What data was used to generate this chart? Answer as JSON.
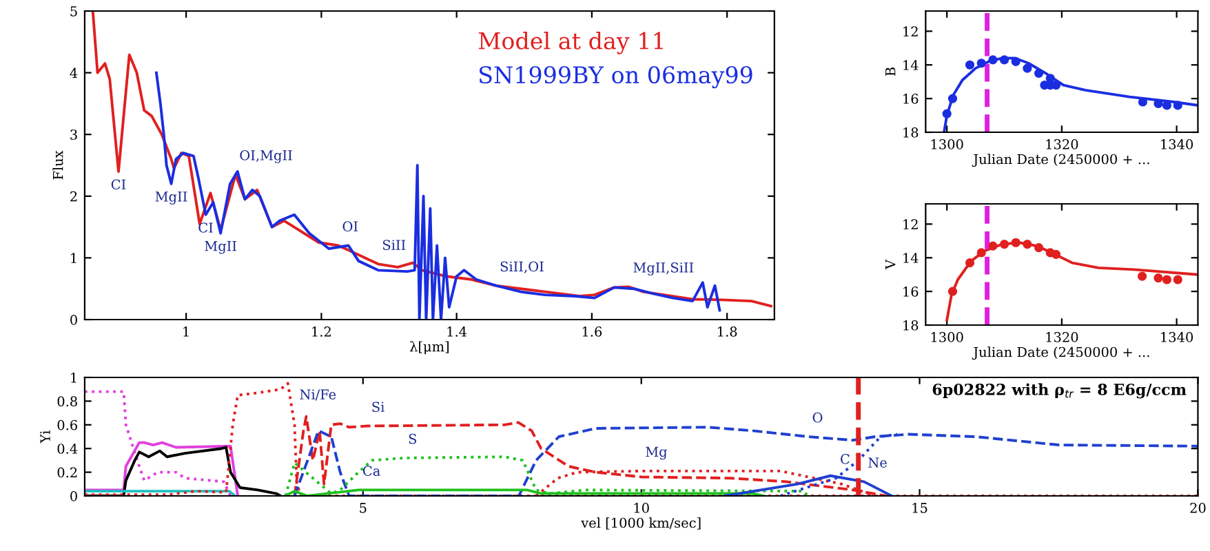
{
  "chart_data": [
    {
      "type": "line",
      "xlabel": "λ[μm]",
      "ylabel": "Flux",
      "xlim": [
        0.85,
        1.87
      ],
      "ylim": [
        0,
        5
      ],
      "xticks": [
        1,
        1.2,
        1.4,
        1.6,
        1.8
      ],
      "yticks": [
        0,
        1,
        2,
        3,
        4,
        5
      ],
      "legend": "top right",
      "series": [
        {
          "name": "Model at day 11",
          "color": "#e02020",
          "x": [
            0.862,
            0.869,
            0.88,
            0.887,
            0.9,
            0.916,
            0.927,
            0.938,
            0.949,
            0.964,
            0.978,
            0.982,
            0.993,
            1.004,
            1.02,
            1.036,
            1.051,
            1.073,
            1.087,
            1.105,
            1.127,
            1.145,
            1.167,
            1.196,
            1.225,
            1.255,
            1.284,
            1.313,
            1.335,
            1.349,
            1.385,
            1.422,
            1.458,
            1.531,
            1.582,
            1.604,
            1.633,
            1.655,
            1.676,
            1.749,
            1.793,
            1.836,
            1.865
          ],
          "values": [
            5.0,
            4.0,
            4.15,
            3.9,
            2.4,
            4.29,
            4.0,
            3.39,
            3.3,
            3.0,
            2.6,
            2.45,
            2.7,
            2.65,
            1.55,
            2.05,
            1.45,
            2.35,
            1.95,
            2.1,
            1.5,
            1.6,
            1.45,
            1.25,
            1.2,
            1.05,
            0.9,
            0.85,
            0.92,
            0.8,
            0.7,
            0.65,
            0.55,
            0.45,
            0.38,
            0.4,
            0.52,
            0.53,
            0.45,
            0.33,
            0.32,
            0.3,
            0.22
          ]
        },
        {
          "name": "SN1999BY on 06may99",
          "color": "#1a2ee0",
          "x": [
            0.956,
            0.962,
            0.967,
            0.971,
            0.978,
            0.985,
            0.996,
            1.011,
            1.018,
            1.029,
            1.04,
            1.051,
            1.065,
            1.076,
            1.087,
            1.098,
            1.109,
            1.127,
            1.138,
            1.16,
            1.182,
            1.211,
            1.24,
            1.255,
            1.284,
            1.327,
            1.338,
            1.342,
            1.345,
            1.351,
            1.355,
            1.361,
            1.365,
            1.371,
            1.377,
            1.383,
            1.389,
            1.4,
            1.411,
            1.429,
            1.458,
            1.495,
            1.531,
            1.575,
            1.604,
            1.633,
            1.662,
            1.691,
            1.72,
            1.749,
            1.764,
            1.771,
            1.782,
            1.789
          ],
          "values": [
            4.0,
            3.5,
            3.0,
            2.5,
            2.2,
            2.6,
            2.7,
            2.65,
            2.3,
            1.7,
            1.9,
            1.4,
            2.2,
            2.4,
            1.95,
            2.1,
            2.0,
            1.5,
            1.6,
            1.7,
            1.4,
            1.15,
            1.2,
            0.95,
            0.8,
            0.78,
            0.8,
            2.5,
            0.0,
            2.0,
            0.0,
            1.8,
            0.0,
            1.2,
            0.0,
            1.0,
            0.2,
            0.7,
            0.8,
            0.65,
            0.55,
            0.45,
            0.4,
            0.38,
            0.35,
            0.52,
            0.5,
            0.42,
            0.35,
            0.3,
            0.6,
            0.2,
            0.55,
            0.15
          ]
        }
      ],
      "annotations": [
        {
          "text": "CI",
          "x": 0.9,
          "y": 2.4
        },
        {
          "text": "MgII",
          "x": 0.978,
          "y": 2.2
        },
        {
          "text": "CI",
          "x": 1.029,
          "y": 1.7
        },
        {
          "text": "MgII",
          "x": 1.051,
          "y": 1.4
        },
        {
          "text": "OI,MgII",
          "x": 1.073,
          "y": 2.35
        },
        {
          "text": "OI",
          "x": 1.225,
          "y": 1.2
        },
        {
          "text": "SiII",
          "x": 1.284,
          "y": 0.9
        },
        {
          "text": "SiII,OI",
          "x": 1.458,
          "y": 0.55
        },
        {
          "text": "MgII,SiII",
          "x": 1.655,
          "y": 0.53
        }
      ]
    },
    {
      "type": "line",
      "xlabel": "Julian Date (2450000 + ...",
      "ylabel": "B",
      "xlim": [
        1296.3,
        1343.7
      ],
      "ylim": [
        18,
        10.8
      ],
      "xticks": [
        1300,
        1320,
        1340
      ],
      "yticks": [
        12,
        14,
        16,
        18
      ],
      "series": [
        {
          "color": "#1a2ee0",
          "x": [
            1299.5,
            1300,
            1301.1,
            1302.7,
            1305,
            1307.3,
            1309.6,
            1311.9,
            1314.2,
            1317.2,
            1320.3,
            1324.1,
            1331.8,
            1339.5,
            1343.7
          ],
          "values": [
            18,
            17.0,
            15.8,
            14.9,
            14.2,
            13.8,
            13.6,
            13.6,
            13.9,
            14.5,
            15.2,
            15.5,
            15.9,
            16.2,
            16.4
          ]
        },
        {
          "type": "scatter",
          "marker": "circle",
          "color": "#1a2ee0",
          "x": [
            1300,
            1301,
            1304,
            1306,
            1308,
            1310,
            1312,
            1314,
            1316,
            1317,
            1318,
            1318,
            1319,
            1334.1,
            1336.8,
            1338.3,
            1340.2
          ],
          "values": [
            16.9,
            16.0,
            14.0,
            13.9,
            13.7,
            13.7,
            13.8,
            14.2,
            14.5,
            15.2,
            14.8,
            15.2,
            15.2,
            16.2,
            16.3,
            16.4,
            16.4
          ]
        }
      ],
      "ref_lines": [
        {
          "axis": "x",
          "value": 1307,
          "color": "#e020e0",
          "line_style": "dashed"
        }
      ]
    },
    {
      "type": "line",
      "xlabel": "Julian Date (2450000 + ...",
      "ylabel": "V",
      "xlim": [
        1296.3,
        1343.7
      ],
      "ylim": [
        18,
        10.8
      ],
      "xticks": [
        1300,
        1320,
        1340
      ],
      "yticks": [
        12,
        14,
        16,
        18
      ],
      "series": [
        {
          "color": "#e02020",
          "x": [
            1300,
            1300.8,
            1301.9,
            1304.2,
            1306.5,
            1309.6,
            1312.6,
            1315.7,
            1318.8,
            1321.8,
            1326.4,
            1332.6,
            1343.7
          ],
          "values": [
            17.7,
            16.2,
            15.3,
            14.2,
            13.6,
            13.2,
            13.1,
            13.3,
            13.8,
            14.3,
            14.6,
            14.7,
            15.0
          ]
        },
        {
          "type": "scatter",
          "marker": "circle",
          "color": "#e02020",
          "x": [
            1301,
            1304,
            1306,
            1308,
            1310,
            1312,
            1314,
            1316,
            1318,
            1319,
            1334,
            1336.8,
            1338.3,
            1340.2
          ],
          "values": [
            16.0,
            14.3,
            13.7,
            13.3,
            13.2,
            13.1,
            13.2,
            13.4,
            13.7,
            13.8,
            15.1,
            15.2,
            15.3,
            15.3
          ]
        }
      ],
      "ref_lines": [
        {
          "axis": "x",
          "value": 1307,
          "color": "#e020e0",
          "line_style": "dashed"
        }
      ]
    },
    {
      "type": "line",
      "title": "6p02822 with ρ$_{tr}$ = 8 E6g/ccm",
      "xlabel": "vel [1000 km/sec]",
      "ylabel": "Yi",
      "xlim": [
        0,
        20
      ],
      "ylim": [
        0,
        1
      ],
      "xticks": [
        5,
        10,
        15,
        20
      ],
      "yticks": [
        0,
        0.2,
        0.4,
        0.6,
        0.8,
        1
      ],
      "series": [
        {
          "color": "#e040e0",
          "line_style": "dotted",
          "x": [
            0,
            0.7,
            0.74,
            0.98,
            1.07,
            1.31,
            1.64,
            1.8,
            2.5,
            2.62
          ],
          "values": [
            0.88,
            0.88,
            0.6,
            0.25,
            0.13,
            0.2,
            0.2,
            0.15,
            0.12,
            0.0
          ]
        },
        {
          "color": "#e040e0",
          "x": [
            0,
            0.7,
            0.74,
            0.98,
            1.07,
            1.23,
            1.39,
            1.64,
            2.62,
            2.75
          ],
          "values": [
            0.05,
            0.05,
            0.25,
            0.45,
            0.45,
            0.43,
            0.45,
            0.41,
            0.42,
            0.0
          ]
        },
        {
          "color": "#000000",
          "x": [
            0,
            0.7,
            0.74,
            0.9,
            0.98,
            1.15,
            1.35,
            1.48,
            1.8,
            2.46,
            2.54,
            2.62,
            2.79,
            3.11,
            3.44,
            3.52
          ],
          "values": [
            0,
            0,
            0.13,
            0.3,
            0.37,
            0.33,
            0.38,
            0.33,
            0.36,
            0.4,
            0.41,
            0.2,
            0.07,
            0.05,
            0.02,
            0
          ]
        },
        {
          "color": "#20c0c0",
          "x": [
            0,
            2.6,
            2.7
          ],
          "values": [
            0.04,
            0.04,
            0
          ]
        },
        {
          "color": "#e02020",
          "line_style": "dotted",
          "x": [
            0,
            1.5,
            2.0,
            2.54,
            2.66,
            2.75,
            3.11,
            3.52,
            3.65,
            3.77,
            3.81,
            3.89,
            20
          ],
          "values": [
            0.01,
            0.01,
            0.04,
            0.03,
            0.6,
            0.85,
            0.87,
            0.9,
            0.95,
            0.6,
            0.1,
            0.0,
            0.0
          ]
        },
        {
          "color": "#e02020",
          "line_style": "dashed",
          "x": [
            3.77,
            3.93,
            3.98,
            4.1,
            4.22,
            4.3,
            4.43,
            4.59,
            4.75,
            5.08,
            7.54,
            7.79,
            8.03,
            8.2,
            8.69,
            9.18,
            10,
            11.6,
            12.6,
            13.8,
            14.4
          ],
          "values": [
            0,
            0.55,
            0.67,
            0.3,
            0.55,
            0.1,
            0.6,
            0.61,
            0.58,
            0.59,
            0.6,
            0.62,
            0.55,
            0.4,
            0.25,
            0.2,
            0.16,
            0.15,
            0.12,
            0.05,
            0.0
          ]
        },
        {
          "color": "#e02020",
          "line_style": "dotted",
          "x": [
            8.11,
            8.5,
            8.85,
            10,
            12.5,
            13.6,
            14.2
          ],
          "values": [
            0,
            0.15,
            0.2,
            0.21,
            0.21,
            0.1,
            0
          ]
        },
        {
          "color": "#2040d0",
          "line_style": "dashed",
          "x": [
            3.77,
            4.2,
            4.43,
            4.59,
            4.75,
            7.8,
            8.11,
            8.52,
            9.18,
            11.2,
            12,
            13,
            13.8,
            14.2,
            14.8,
            16,
            17.5,
            20
          ],
          "values": [
            0,
            0.55,
            0.5,
            0.2,
            0,
            0,
            0.3,
            0.5,
            0.57,
            0.58,
            0.55,
            0.5,
            0.47,
            0.5,
            0.52,
            0.5,
            0.43,
            0.42
          ]
        },
        {
          "color": "#20c020",
          "line_style": "dotted",
          "x": [
            3.61,
            3.77,
            4.1,
            4.43,
            4.59,
            4.92,
            5.16,
            5.74,
            7.54,
            7.87,
            8.11,
            8.36,
            9,
            12.9,
            13.0
          ],
          "values": [
            0,
            0.28,
            0.15,
            0.02,
            0.05,
            0.2,
            0.3,
            0.32,
            0.33,
            0.3,
            0.05,
            0.02,
            0.05,
            0.04,
            0
          ]
        },
        {
          "color": "#20c020",
          "x": [
            3.6,
            3.77,
            4.0,
            4.92,
            7.95,
            8.2,
            12,
            12.2
          ],
          "values": [
            0,
            0.04,
            0,
            0.05,
            0.05,
            0.02,
            0.02,
            0
          ]
        },
        {
          "color": "#2040d0",
          "x": [
            11.5,
            12.8,
            13.4,
            14.0,
            14.5
          ],
          "values": [
            0,
            0.1,
            0.17,
            0.12,
            0
          ]
        },
        {
          "color": "#2040d0",
          "line_style": "dotted",
          "x": [
            12.5,
            13.5,
            13.9,
            14.3,
            14.6
          ],
          "values": [
            0,
            0.15,
            0.3,
            0.5,
            0.52
          ]
        }
      ],
      "ref_lines": [
        {
          "axis": "x",
          "value": 13.9,
          "color": "#e02020",
          "line_style": "dashed"
        }
      ],
      "annotations": [
        {
          "text": "Ni/Fe",
          "x": 3.65,
          "y": 0.95
        },
        {
          "text": "Si",
          "x": 5.08,
          "y": 0.59
        },
        {
          "text": "S",
          "x": 5.74,
          "y": 0.32
        },
        {
          "text": "Ca",
          "x": 4.92,
          "y": 0.05
        },
        {
          "text": "O",
          "x": 13,
          "y": 0.5
        },
        {
          "text": "Mg",
          "x": 10,
          "y": 0.21
        },
        {
          "text": "C",
          "x": 13.5,
          "y": 0.15
        },
        {
          "text": "Ne",
          "x": 14.0,
          "y": 0.12
        }
      ]
    }
  ]
}
